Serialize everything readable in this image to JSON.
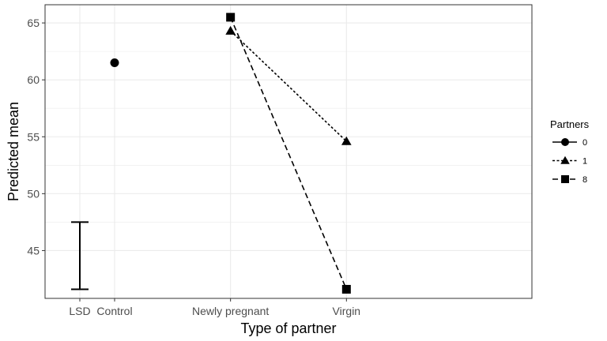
{
  "chart_data": {
    "type": "line",
    "title": "",
    "xlabel": "Type of partner",
    "ylabel": "Predicted mean",
    "categories": [
      "LSD",
      "Control",
      "Newly pregnant",
      "Virgin"
    ],
    "ylim": [
      40.8,
      66.6
    ],
    "yticks": [
      45,
      50,
      55,
      60,
      65
    ],
    "grid": true,
    "legend": {
      "title": "Partners",
      "placement": "right"
    },
    "series": [
      {
        "name": "0",
        "marker": "circle",
        "dash": "solid",
        "points": [
          {
            "x": "Control",
            "y": 61.5
          }
        ]
      },
      {
        "name": "1",
        "marker": "triangle",
        "dash": "dotted",
        "points": [
          {
            "x": "Newly pregnant",
            "y": 64.3
          },
          {
            "x": "Virgin",
            "y": 54.6
          }
        ]
      },
      {
        "name": "8",
        "marker": "square",
        "dash": "dashed",
        "points": [
          {
            "x": "Newly pregnant",
            "y": 65.5
          },
          {
            "x": "Virgin",
            "y": 41.6
          }
        ]
      }
    ],
    "error_bar": {
      "category": "LSD",
      "low": 41.6,
      "high": 47.5
    },
    "colors": {
      "ink": "#000000",
      "grid": "#ebebeb",
      "tick_text": "#4d4d4d",
      "background": "#ffffff"
    }
  }
}
